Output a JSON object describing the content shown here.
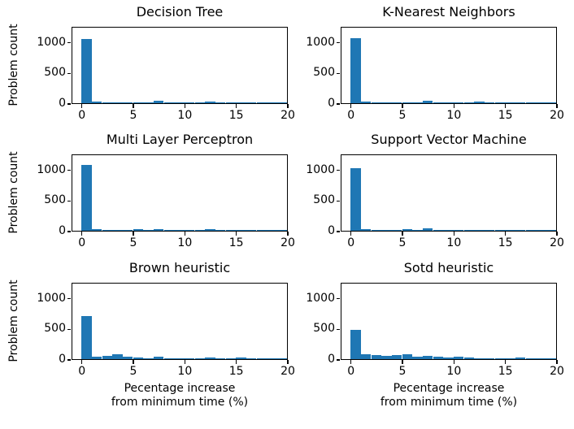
{
  "figure": {
    "ylabel": "Problem count",
    "xlabel": "Pecentage increase\nfrom minimum time (%)",
    "bar_color": "#1f77b4",
    "axis_color": "#000000",
    "background_color": "#ffffff",
    "x_ticks": [
      0,
      5,
      10,
      15,
      20
    ],
    "y_ticks": [
      0,
      500,
      1000
    ],
    "xlim": [
      -1,
      20
    ],
    "ylim": [
      0,
      1263
    ],
    "grid": false,
    "legend": false
  },
  "chart_data": [
    {
      "type": "histogram",
      "title": "Decision Tree",
      "xlabel": "Pecentage increase from minimum time (%)",
      "ylabel": "Problem count",
      "bin_start": 0,
      "bin_width": 1,
      "bin_edges": [
        0,
        1,
        2,
        3,
        4,
        5,
        6,
        7,
        8,
        9,
        10,
        11,
        12,
        13,
        14,
        15,
        16,
        17,
        18,
        19,
        20
      ],
      "values": [
        1045,
        27,
        13,
        12,
        12,
        13,
        14,
        35,
        6,
        3,
        14,
        5,
        22,
        3,
        2,
        9,
        3,
        2,
        2,
        2
      ]
    },
    {
      "type": "histogram",
      "title": "K-Nearest Neighbors",
      "xlabel": "Pecentage increase from minimum time (%)",
      "ylabel": "Problem count",
      "bin_start": 0,
      "bin_width": 1,
      "bin_edges": [
        0,
        1,
        2,
        3,
        4,
        5,
        6,
        7,
        8,
        9,
        10,
        11,
        12,
        13,
        14,
        15,
        16,
        17,
        18,
        19,
        20
      ],
      "values": [
        1065,
        32,
        14,
        12,
        12,
        18,
        16,
        35,
        6,
        3,
        10,
        4,
        25,
        4,
        8,
        3,
        2,
        2,
        2,
        2
      ]
    },
    {
      "type": "histogram",
      "title": "Multi Layer Perceptron",
      "xlabel": "Pecentage increase from minimum time (%)",
      "ylabel": "Problem count",
      "bin_start": 0,
      "bin_width": 1,
      "bin_edges": [
        0,
        1,
        2,
        3,
        4,
        5,
        6,
        7,
        8,
        9,
        10,
        11,
        12,
        13,
        14,
        15,
        16,
        17,
        18,
        19,
        20
      ],
      "values": [
        1075,
        26,
        17,
        15,
        8,
        22,
        12,
        30,
        4,
        3,
        5,
        3,
        24,
        3,
        2,
        4,
        2,
        2,
        2,
        2
      ]
    },
    {
      "type": "histogram",
      "title": "Support Vector Machine",
      "xlabel": "Pecentage increase from minimum time (%)",
      "ylabel": "Problem count",
      "bin_start": 0,
      "bin_width": 1,
      "bin_edges": [
        0,
        1,
        2,
        3,
        4,
        5,
        6,
        7,
        8,
        9,
        10,
        11,
        12,
        13,
        14,
        15,
        16,
        17,
        18,
        19,
        20
      ],
      "values": [
        1025,
        33,
        11,
        10,
        10,
        24,
        20,
        35,
        5,
        3,
        18,
        5,
        20,
        4,
        13,
        13,
        3,
        2,
        2,
        2
      ]
    },
    {
      "type": "histogram",
      "title": "Brown heuristic",
      "xlabel": "Pecentage increase from minimum time (%)",
      "ylabel": "Problem count",
      "bin_start": 0,
      "bin_width": 1,
      "bin_edges": [
        0,
        1,
        2,
        3,
        4,
        5,
        6,
        7,
        8,
        9,
        10,
        11,
        12,
        13,
        14,
        15,
        16,
        17,
        18,
        19,
        20
      ],
      "values": [
        700,
        42,
        59,
        85,
        42,
        30,
        17,
        42,
        8,
        8,
        17,
        8,
        30,
        8,
        5,
        25,
        5,
        17,
        4,
        4
      ]
    },
    {
      "type": "histogram",
      "title": "Sotd heuristic",
      "xlabel": "Pecentage increase from minimum time (%)",
      "ylabel": "Problem count",
      "bin_start": 0,
      "bin_width": 1,
      "bin_edges": [
        0,
        1,
        2,
        3,
        4,
        5,
        6,
        7,
        8,
        9,
        10,
        11,
        12,
        13,
        14,
        15,
        16,
        17,
        18,
        19,
        20
      ],
      "values": [
        480,
        76,
        68,
        55,
        64,
        76,
        38,
        51,
        42,
        30,
        38,
        21,
        17,
        13,
        8,
        8,
        21,
        8,
        6,
        5
      ]
    }
  ]
}
